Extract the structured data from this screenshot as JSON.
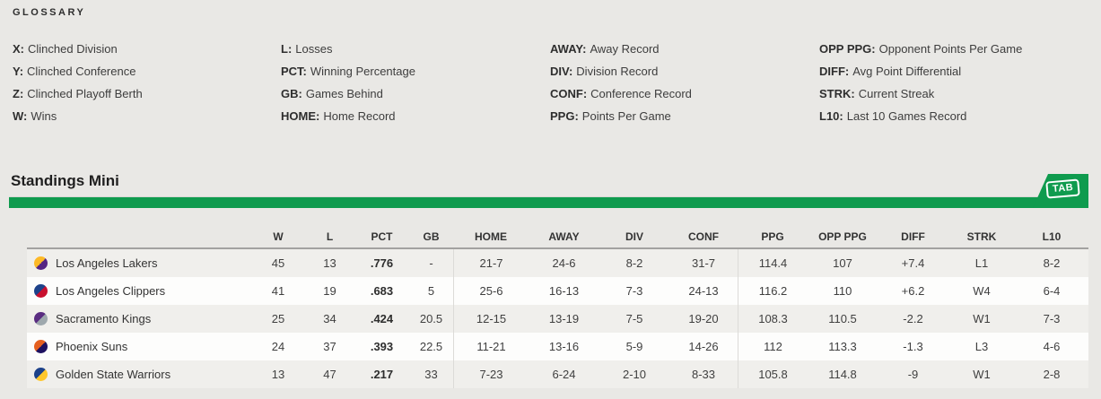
{
  "colors": {
    "accent_green": "#0f9b4e",
    "row_odd": "#f0efec",
    "row_even": "#fdfdfc"
  },
  "glossary": {
    "title": "GLOSSARY",
    "columns": [
      [
        {
          "term": "X:",
          "def": "Clinched Division"
        },
        {
          "term": "Y:",
          "def": "Clinched Conference"
        },
        {
          "term": "Z:",
          "def": "Clinched Playoff Berth"
        },
        {
          "term": "W:",
          "def": "Wins"
        }
      ],
      [
        {
          "term": "L:",
          "def": "Losses"
        },
        {
          "term": "PCT:",
          "def": "Winning Percentage"
        },
        {
          "term": "GB:",
          "def": "Games Behind"
        },
        {
          "term": "HOME:",
          "def": "Home Record"
        }
      ],
      [
        {
          "term": "AWAY:",
          "def": "Away Record"
        },
        {
          "term": "DIV:",
          "def": "Division Record"
        },
        {
          "term": "CONF:",
          "def": "Conference Record"
        },
        {
          "term": "PPG:",
          "def": "Points Per Game"
        }
      ],
      [
        {
          "term": "OPP PPG:",
          "def": "Opponent Points Per Game"
        },
        {
          "term": "DIFF:",
          "def": "Avg Point Differential"
        },
        {
          "term": "STRK:",
          "def": "Current Streak"
        },
        {
          "term": "L10:",
          "def": "Last 10 Games Record"
        }
      ]
    ]
  },
  "standings": {
    "title": "Standings Mini",
    "sponsor_label": "TAB",
    "column_headers": [
      "W",
      "L",
      "PCT",
      "GB",
      "HOME",
      "AWAY",
      "DIV",
      "CONF",
      "PPG",
      "OPP PPG",
      "DIFF",
      "STRK",
      "L10"
    ],
    "teams": [
      {
        "name": "Los Angeles Lakers",
        "logo_colors": [
          "#fdb927",
          "#552583"
        ],
        "stats": [
          "45",
          "13",
          ".776",
          "-",
          "21-7",
          "24-6",
          "8-2",
          "31-7",
          "114.4",
          "107",
          "+7.4",
          "L1",
          "8-2"
        ]
      },
      {
        "name": "Los Angeles Clippers",
        "logo_colors": [
          "#1d428a",
          "#c8102e"
        ],
        "stats": [
          "41",
          "19",
          ".683",
          "5",
          "25-6",
          "16-13",
          "7-3",
          "24-13",
          "116.2",
          "110",
          "+6.2",
          "W4",
          "6-4"
        ]
      },
      {
        "name": "Sacramento Kings",
        "logo_colors": [
          "#5a2d81",
          "#9ea8ad"
        ],
        "stats": [
          "25",
          "34",
          ".424",
          "20.5",
          "12-15",
          "13-19",
          "7-5",
          "19-20",
          "108.3",
          "110.5",
          "-2.2",
          "W1",
          "7-3"
        ]
      },
      {
        "name": "Phoenix Suns",
        "logo_colors": [
          "#e56020",
          "#1d1160"
        ],
        "stats": [
          "24",
          "37",
          ".393",
          "22.5",
          "11-21",
          "13-16",
          "5-9",
          "14-26",
          "112",
          "113.3",
          "-1.3",
          "L3",
          "4-6"
        ]
      },
      {
        "name": "Golden State Warriors",
        "logo_colors": [
          "#1d428a",
          "#ffc72c"
        ],
        "stats": [
          "13",
          "47",
          ".217",
          "33",
          "7-23",
          "6-24",
          "2-10",
          "8-33",
          "105.8",
          "114.8",
          "-9",
          "W1",
          "2-8"
        ]
      }
    ]
  }
}
